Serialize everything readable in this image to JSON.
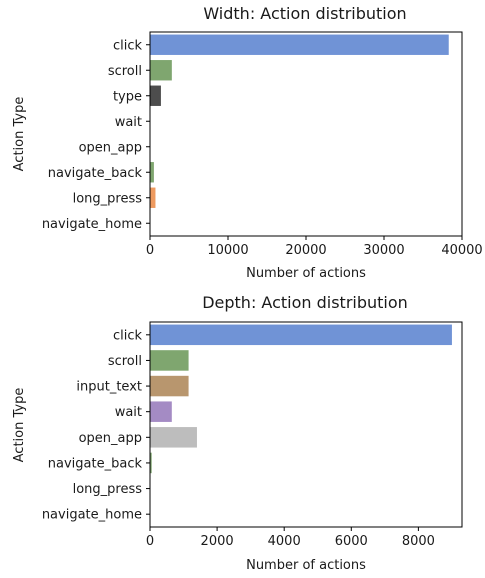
{
  "chart_data": [
    {
      "type": "bar",
      "orientation": "horizontal",
      "title": "Width: Action distribution",
      "xlabel": "Number of actions",
      "ylabel": "Action Type",
      "xlim": [
        0,
        40000
      ],
      "xticks": [
        0,
        10000,
        20000,
        30000,
        40000
      ],
      "grid": false,
      "categories": [
        "click",
        "scroll",
        "type",
        "wait",
        "open_app",
        "navigate_back",
        "long_press",
        "navigate_home"
      ],
      "values": [
        38300,
        2800,
        1400,
        0,
        0,
        500,
        700,
        0
      ],
      "colors": [
        "#7093d6",
        "#7fa66f",
        "#4d4d4d",
        "#8c8c8c",
        "#8c8c8c",
        "#7fa66f",
        "#ee9a5f",
        "#8c8c8c"
      ]
    },
    {
      "type": "bar",
      "orientation": "horizontal",
      "title": "Depth: Action distribution",
      "xlabel": "Number of actions",
      "ylabel": "Action Type",
      "xlim": [
        0,
        9300
      ],
      "xticks": [
        0,
        2000,
        4000,
        6000,
        8000
      ],
      "grid": false,
      "categories": [
        "click",
        "scroll",
        "input_text",
        "wait",
        "open_app",
        "navigate_back",
        "long_press",
        "navigate_home"
      ],
      "values": [
        9000,
        1150,
        1150,
        650,
        1400,
        50,
        0,
        0
      ],
      "colors": [
        "#7093d6",
        "#7fa66f",
        "#b8966e",
        "#a48bc4",
        "#bdbdbd",
        "#7fa66f",
        "#8c8c8c",
        "#8c8c8c"
      ]
    }
  ]
}
